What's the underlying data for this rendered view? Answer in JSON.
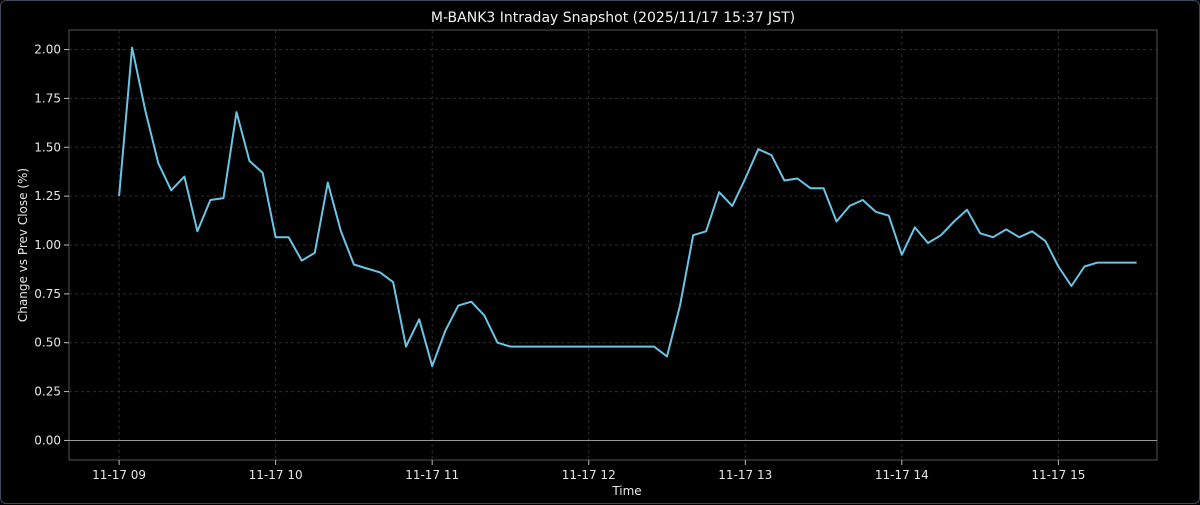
{
  "chart_data": {
    "type": "line",
    "title": "M-BANK3 Intraday Snapshot (2025/11/17 15:37 JST)",
    "xlabel": "Time",
    "ylabel": "Change vs Prev Close (%)",
    "x_ticks": [
      "11-17 09",
      "11-17 10",
      "11-17 11",
      "11-17 12",
      "11-17 13",
      "11-17 14",
      "11-17 15"
    ],
    "x_tick_hours": [
      9,
      10,
      11,
      12,
      13,
      14,
      15
    ],
    "y_ticks": [
      "0.00",
      "0.25",
      "0.50",
      "0.75",
      "1.00",
      "1.25",
      "1.50",
      "1.75",
      "2.00"
    ],
    "y_tick_values": [
      0,
      0.25,
      0.5,
      0.75,
      1.0,
      1.25,
      1.5,
      1.75,
      2.0
    ],
    "xlim": [
      8.68,
      15.63
    ],
    "ylim": [
      -0.1,
      2.1
    ],
    "grid": true,
    "zero_line": 0,
    "line_color": "#6cc4e4",
    "series": [
      {
        "x": [
          9.0,
          9.083,
          9.167,
          9.25,
          9.333,
          9.417,
          9.5,
          9.583,
          9.667,
          9.75,
          9.833,
          9.917,
          10.0,
          10.083,
          10.167,
          10.25,
          10.333,
          10.417,
          10.5,
          10.583,
          10.667,
          10.75,
          10.833,
          10.917,
          11.0,
          11.083,
          11.167,
          11.25,
          11.333,
          11.417,
          11.5,
          11.583,
          11.667,
          11.75,
          11.833,
          11.917,
          12.0,
          12.083,
          12.167,
          12.25,
          12.333,
          12.417,
          12.5,
          12.583,
          12.667,
          12.75,
          12.833,
          12.917,
          13.0,
          13.083,
          13.167,
          13.25,
          13.333,
          13.417,
          13.5,
          13.583,
          13.667,
          13.75,
          13.833,
          13.917,
          14.0,
          14.083,
          14.167,
          14.25,
          14.333,
          14.417,
          14.5,
          14.583,
          14.667,
          14.75,
          14.833,
          14.917,
          15.0,
          15.083,
          15.167,
          15.25,
          15.333,
          15.417,
          15.5
        ],
        "values": [
          1.25,
          2.01,
          1.69,
          1.42,
          1.28,
          1.35,
          1.07,
          1.23,
          1.24,
          1.68,
          1.43,
          1.37,
          1.04,
          1.04,
          0.92,
          0.96,
          1.32,
          1.07,
          0.9,
          0.88,
          0.86,
          0.81,
          0.48,
          0.62,
          0.38,
          0.56,
          0.69,
          0.71,
          0.64,
          0.5,
          0.48,
          0.48,
          0.48,
          0.48,
          0.48,
          0.48,
          0.48,
          0.48,
          0.48,
          0.48,
          0.48,
          0.48,
          0.43,
          0.69,
          1.05,
          1.07,
          1.27,
          1.2,
          1.34,
          1.49,
          1.46,
          1.33,
          1.34,
          1.29,
          1.29,
          1.12,
          1.2,
          1.23,
          1.17,
          1.15,
          0.95,
          1.09,
          1.01,
          1.05,
          1.12,
          1.18,
          1.06,
          1.04,
          1.08,
          1.04,
          1.07,
          1.02,
          0.89,
          0.79,
          0.89,
          0.91,
          0.91,
          0.91,
          0.91
        ]
      }
    ]
  }
}
